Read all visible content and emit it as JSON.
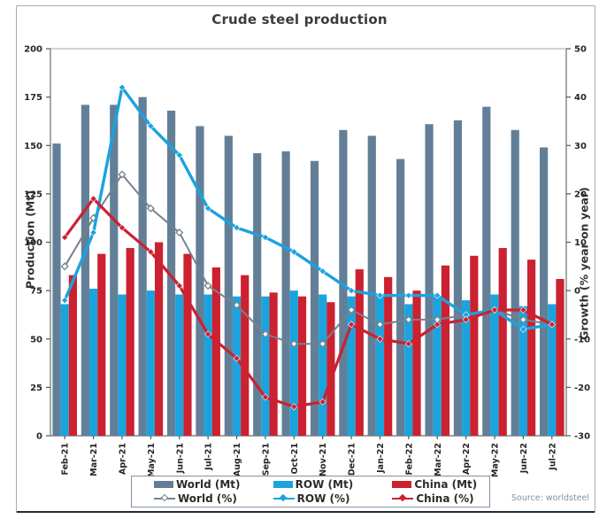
{
  "title": "Crude steel production",
  "source_label": "Source: worldsteel",
  "legend": {
    "items": [
      {
        "label": "World (Mt)",
        "slug": "world-mt"
      },
      {
        "label": "ROW (Mt)",
        "slug": "row-mt"
      },
      {
        "label": "China (Mt)",
        "slug": "china-mt"
      },
      {
        "label": "World (%)",
        "slug": "world-pct"
      },
      {
        "label": "ROW (%)",
        "slug": "row-pct"
      },
      {
        "label": "China (%)",
        "slug": "china-pct"
      }
    ]
  },
  "chart_data": {
    "type": "bar+line combo",
    "title": "Crude steel production",
    "ylabel_left": "Production (Mt)",
    "ylabel_right": "Growth (% year on year)",
    "ylim_left": [
      0,
      200
    ],
    "ylim_right": [
      -30,
      50
    ],
    "yticks_left": [
      0,
      25,
      50,
      75,
      100,
      125,
      150,
      175,
      200
    ],
    "yticks_right": [
      -30,
      -20,
      -10,
      0,
      10,
      20,
      30,
      40,
      50
    ],
    "grid": false,
    "legend_position": "bottom",
    "categories": [
      "Feb-21",
      "Mar-21",
      "Apr-21",
      "May-21",
      "Jun-21",
      "Jul-21",
      "Aug-21",
      "Sep-21",
      "Oct-21",
      "Nov-21",
      "Dec-21",
      "Jan-22",
      "Feb-22",
      "Mar-22",
      "Apr-22",
      "May-22",
      "Jun-22",
      "Jul-22"
    ],
    "bar_series": [
      {
        "name": "World (Mt)",
        "slug": "world-mt",
        "axis": "left",
        "color": "#627f97",
        "values": [
          151,
          171,
          171,
          175,
          168,
          160,
          155,
          146,
          147,
          142,
          158,
          155,
          143,
          161,
          163,
          170,
          158,
          149
        ]
      },
      {
        "name": "ROW (Mt)",
        "slug": "row-mt",
        "axis": "left",
        "color": "#1ba3dd",
        "values": [
          68,
          76,
          73,
          75,
          73,
          73,
          72,
          72,
          75,
          73,
          72,
          73,
          68,
          72,
          70,
          73,
          67,
          68
        ]
      },
      {
        "name": "China (Mt)",
        "slug": "china-mt",
        "axis": "left",
        "color": "#cb2130",
        "values": [
          83,
          94,
          97,
          100,
          94,
          87,
          83,
          74,
          72,
          69,
          86,
          82,
          75,
          88,
          93,
          97,
          91,
          81
        ]
      }
    ],
    "line_series": [
      {
        "name": "World (%)",
        "slug": "world-pct",
        "axis": "right",
        "color": "#75828d",
        "width": 2,
        "marker": "open-diamond",
        "values": [
          5,
          15,
          24,
          17,
          12,
          1,
          -3,
          -9,
          -11,
          -11,
          -4,
          -7,
          -6,
          -6,
          -5,
          -4,
          -6,
          -7
        ]
      },
      {
        "name": "ROW (%)",
        "slug": "row-pct",
        "axis": "right",
        "color": "#1ba3dd",
        "width": 3.4,
        "marker": "solid-diamond",
        "values": [
          -2,
          12,
          42,
          34,
          28,
          17,
          13,
          11,
          8,
          4,
          0,
          -1,
          -1,
          -1,
          -5,
          -4,
          -8,
          -7
        ]
      },
      {
        "name": "China (%)",
        "slug": "china-pct",
        "axis": "right",
        "color": "#cb2130",
        "width": 3.2,
        "marker": "solid-diamond",
        "values": [
          11,
          19,
          13,
          8,
          1,
          -9,
          -14,
          -22,
          -24,
          -23,
          -7,
          -10,
          -11,
          -7,
          -6,
          -4,
          -4,
          -7
        ]
      }
    ]
  }
}
